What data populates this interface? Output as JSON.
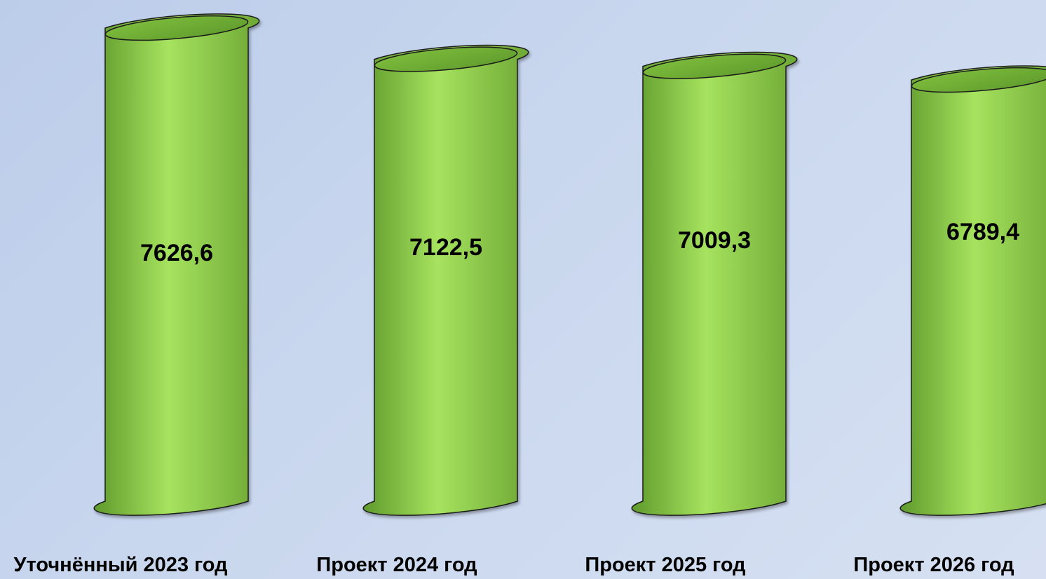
{
  "chart_data": {
    "type": "bar",
    "categories": [
      "Уточнённый 2023 год",
      "Проект 2024 год",
      "Проект 2025 год",
      "Проект 2026 год"
    ],
    "values": [
      7626.6,
      7122.5,
      7009.3,
      6789.4
    ],
    "value_labels": [
      "7626,6",
      "7122,5",
      "7009,3",
      "6789,4"
    ],
    "title": "",
    "xlabel": "",
    "ylabel": "",
    "grid": false,
    "legend": "none",
    "bar_style": "3d-cylinder",
    "colors": {
      "bar_fill": "#8fd14f",
      "bar_highlight": "#a6e35e",
      "bar_shadow": "#5f9a2c",
      "outline": "#1a1a1a",
      "text": "#000000"
    }
  }
}
